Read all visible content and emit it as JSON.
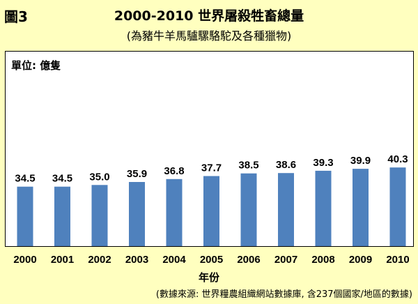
{
  "figure_label": "圖3",
  "chart_data": {
    "type": "bar",
    "title": "2000-2010 世界屠殺牲畜總量",
    "subtitle": "(為豬牛羊馬驢騾駱駝及各種獵物)",
    "unit_label": "單位: 億隻",
    "xlabel": "年份",
    "source": "(數據來源: 世界糧農組織網站數據庫, 含237個國家/地區的數據)",
    "categories": [
      "2000",
      "2001",
      "2002",
      "2003",
      "2004",
      "2005",
      "2006",
      "2007",
      "2008",
      "2009",
      "2010"
    ],
    "values": [
      34.5,
      34.5,
      35.0,
      35.9,
      36.8,
      37.7,
      38.5,
      38.6,
      39.3,
      39.9,
      40.3
    ],
    "value_labels": [
      "34.5",
      "34.5",
      "35.0",
      "35.9",
      "36.8",
      "37.7",
      "38.5",
      "38.6",
      "39.3",
      "39.9",
      "40.3"
    ],
    "grid": false,
    "legend": "none",
    "bar_color": "#4F81BD"
  }
}
